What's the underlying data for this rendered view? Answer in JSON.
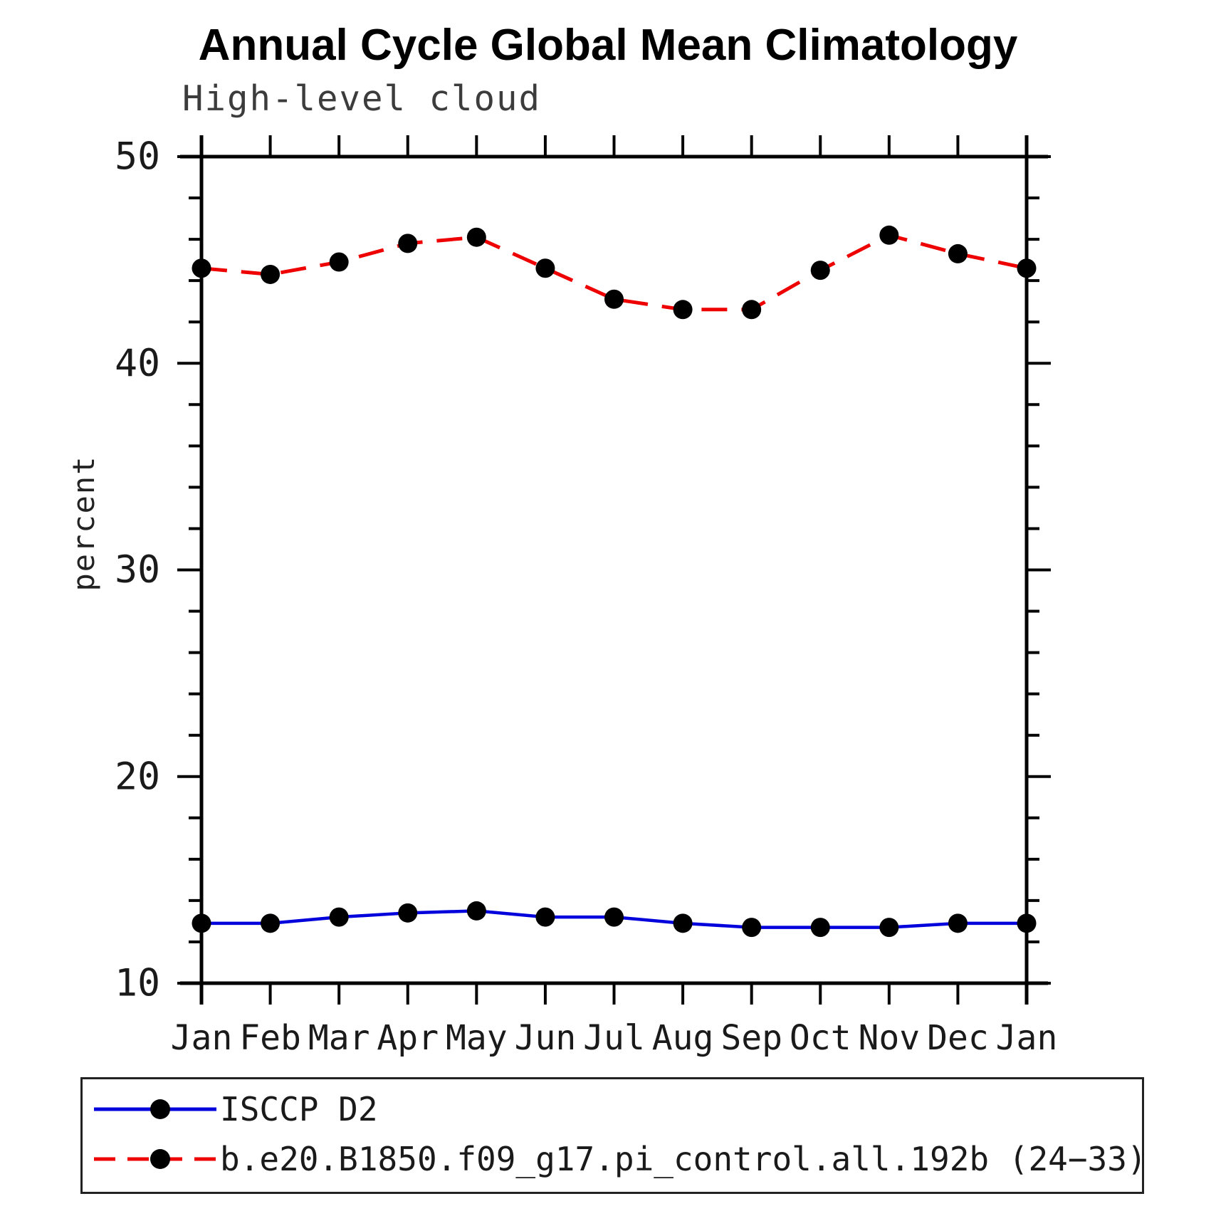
{
  "title": "Annual Cycle Global Mean Climatology",
  "subtitle": "High-level cloud",
  "chart_data": {
    "type": "line",
    "categories": [
      "Jan",
      "Feb",
      "Mar",
      "Apr",
      "May",
      "Jun",
      "Jul",
      "Aug",
      "Sep",
      "Oct",
      "Nov",
      "Dec",
      "Jan"
    ],
    "series": [
      {
        "name": "ISCCP D2",
        "color": "#0000dd",
        "line_style": "solid",
        "marker": "filled-black-circle",
        "values": [
          12.9,
          12.9,
          13.2,
          13.4,
          13.5,
          13.2,
          13.2,
          12.9,
          12.7,
          12.7,
          12.7,
          12.9,
          12.9
        ]
      },
      {
        "name": "b.e20.B1850.f09_g17.pi_control.all.192b (24−33)",
        "color": "#ee0000",
        "line_style": "dashed",
        "marker": "filled-black-circle",
        "values": [
          44.6,
          44.3,
          44.9,
          45.8,
          46.1,
          44.6,
          43.1,
          42.6,
          42.6,
          44.5,
          46.2,
          45.3,
          44.6
        ]
      }
    ],
    "xlabel": "",
    "ylabel": "percent",
    "ylim": [
      10,
      50
    ],
    "yticks": [
      10,
      20,
      30,
      40,
      50
    ],
    "y_minor_step": 2,
    "grid": "off",
    "legend_position": "bottom-left-box"
  }
}
